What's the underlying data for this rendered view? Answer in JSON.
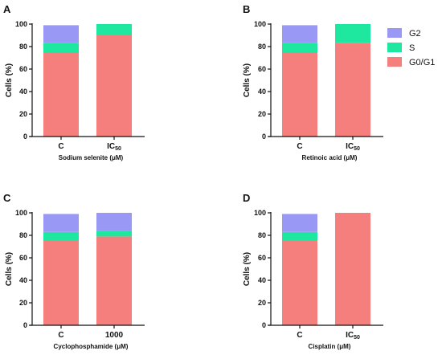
{
  "legend": [
    {
      "label": "G2",
      "color": "#9999f5"
    },
    {
      "label": "S",
      "color": "#1ee8a0"
    },
    {
      "label": "G0/G1",
      "color": "#f47f7c"
    }
  ],
  "chart_data": [
    {
      "type": "bar",
      "stacked": true,
      "panel": "A",
      "categories": [
        {
          "main": "C",
          "sub": ""
        },
        {
          "main": "IC",
          "sub": "50"
        }
      ],
      "xlabel": "Sodium selenite (μM)",
      "ylabel": "Cells (%)",
      "ylim": [
        0,
        100
      ],
      "yticks": [
        "0",
        "20",
        "40",
        "60",
        "80",
        "100"
      ],
      "series": [
        {
          "name": "G0/G1",
          "values": [
            75,
            90
          ]
        },
        {
          "name": "S",
          "values": [
            8,
            10
          ]
        },
        {
          "name": "G2",
          "values": [
            16,
            0
          ]
        }
      ]
    },
    {
      "type": "bar",
      "stacked": true,
      "panel": "B",
      "categories": [
        {
          "main": "C",
          "sub": ""
        },
        {
          "main": "IC",
          "sub": "50"
        }
      ],
      "xlabel": "Retinoic acid (μM)",
      "ylabel": "Cells (%)",
      "ylim": [
        0,
        100
      ],
      "yticks": [
        "0",
        "20",
        "40",
        "60",
        "80",
        "100"
      ],
      "series": [
        {
          "name": "G0/G1",
          "values": [
            75,
            83
          ]
        },
        {
          "name": "S",
          "values": [
            8,
            17
          ]
        },
        {
          "name": "G2",
          "values": [
            16,
            0
          ]
        }
      ]
    },
    {
      "type": "bar",
      "stacked": true,
      "panel": "C",
      "categories": [
        {
          "main": "C",
          "sub": ""
        },
        {
          "main": "1000",
          "sub": ""
        }
      ],
      "xlabel": "Cyclophosphamide (μM)",
      "ylabel": "Cells (%)",
      "ylim": [
        0,
        100
      ],
      "yticks": [
        "0",
        "20",
        "40",
        "60",
        "80",
        "100"
      ],
      "series": [
        {
          "name": "G0/G1",
          "values": [
            75,
            79
          ]
        },
        {
          "name": "S",
          "values": [
            8,
            5
          ]
        },
        {
          "name": "G2",
          "values": [
            16,
            16
          ]
        }
      ]
    },
    {
      "type": "bar",
      "stacked": true,
      "panel": "D",
      "categories": [
        {
          "main": "C",
          "sub": ""
        },
        {
          "main": "IC",
          "sub": "50"
        }
      ],
      "xlabel": "Cisplatin (μM)",
      "ylabel": "Cells (%)",
      "ylim": [
        0,
        100
      ],
      "yticks": [
        "0",
        "20",
        "40",
        "60",
        "80",
        "100"
      ],
      "series": [
        {
          "name": "G0/G1",
          "values": [
            75,
            100
          ]
        },
        {
          "name": "S",
          "values": [
            8,
            0
          ]
        },
        {
          "name": "G2",
          "values": [
            16,
            0
          ]
        }
      ]
    }
  ]
}
